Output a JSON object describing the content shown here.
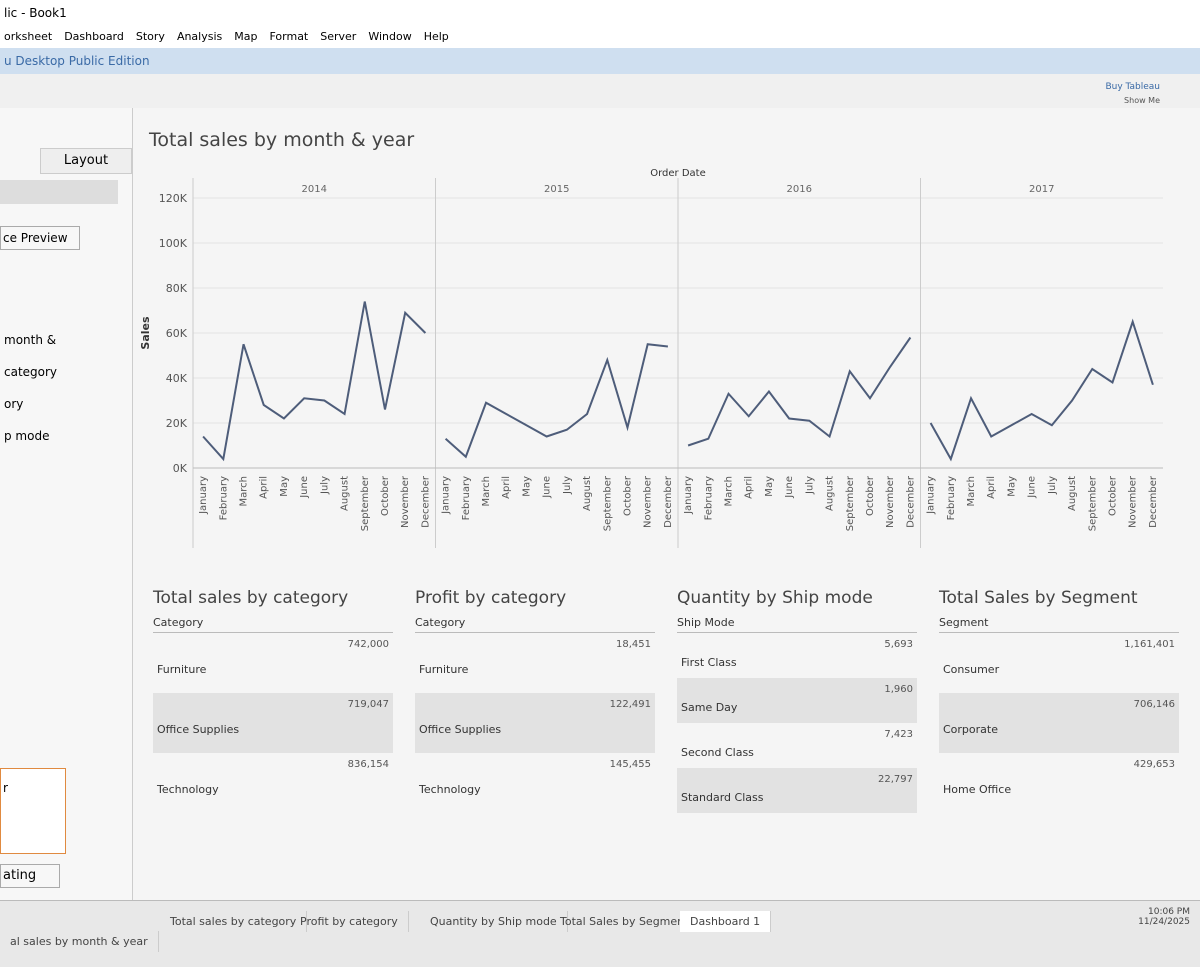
{
  "window": {
    "title": "lic - Book1",
    "menu": [
      "orksheet",
      "Dashboard",
      "Story",
      "Analysis",
      "Map",
      "Format",
      "Server",
      "Window",
      "Help"
    ],
    "edition": "u Desktop Public Edition",
    "buy": "Buy Tableau",
    "show_me": "Show Me"
  },
  "left_pane": {
    "tab": "Layout",
    "preview": "ce Preview",
    "sheets": [
      "month &",
      "category",
      "ory",
      "p mode"
    ],
    "list_item": "r",
    "floating": "ating"
  },
  "chart_data": {
    "type": "line",
    "title": "Total sales by month & year",
    "x_label": "Order Date",
    "y_label": "Sales",
    "categories": [
      "January",
      "February",
      "March",
      "April",
      "May",
      "June",
      "July",
      "August",
      "September",
      "October",
      "November",
      "December"
    ],
    "series": [
      {
        "name": "2014",
        "color": "#4e5d7a",
        "values": [
          14000,
          4000,
          55000,
          28000,
          22000,
          31000,
          30000,
          24000,
          74000,
          26000,
          69000,
          60000
        ]
      },
      {
        "name": "2015",
        "color": "#4e5d7a",
        "values": [
          13000,
          5000,
          29000,
          24000,
          19000,
          14000,
          17000,
          24000,
          48000,
          18000,
          55000,
          54000
        ]
      },
      {
        "name": "2016",
        "color": "#4e5d7a",
        "values": [
          10000,
          13000,
          33000,
          23000,
          34000,
          22000,
          21000,
          14000,
          43000,
          31000,
          45000,
          58000
        ]
      },
      {
        "name": "2017",
        "color": "#4e5d7a",
        "values": [
          20000,
          4000,
          31000,
          14000,
          19000,
          24000,
          19000,
          30000,
          44000,
          38000,
          65000,
          37000
        ]
      }
    ],
    "ylim": [
      0,
      120000
    ],
    "yticks": [
      {
        "value": 0,
        "label": "0K"
      },
      {
        "value": 20000,
        "label": "20K"
      },
      {
        "value": 40000,
        "label": "40K"
      },
      {
        "value": 60000,
        "label": "60K"
      },
      {
        "value": 80000,
        "label": "80K"
      },
      {
        "value": 100000,
        "label": "100K"
      },
      {
        "value": 120000,
        "label": "120K"
      }
    ],
    "grid": true
  },
  "tables": [
    {
      "title": "Total sales by category",
      "header": "Category",
      "rows": [
        [
          "Furniture",
          "742,000"
        ],
        [
          "Office Supplies",
          "719,047"
        ],
        [
          "Technology",
          "836,154"
        ]
      ]
    },
    {
      "title": "Profit by category",
      "header": "Category",
      "rows": [
        [
          "Furniture",
          "18,451"
        ],
        [
          "Office Supplies",
          "122,491"
        ],
        [
          "Technology",
          "145,455"
        ]
      ]
    },
    {
      "title": "Quantity by Ship mode",
      "header": "Ship Mode",
      "rows": [
        [
          "First Class",
          "5,693"
        ],
        [
          "Same Day",
          "1,960"
        ],
        [
          "Second Class",
          "7,423"
        ],
        [
          "Standard Class",
          "22,797"
        ]
      ]
    },
    {
      "title": "Total Sales by Segment",
      "header": "Segment",
      "rows": [
        [
          "Consumer",
          "1,161,401"
        ],
        [
          "Corporate",
          "706,146"
        ],
        [
          "Home Office",
          "429,653"
        ]
      ]
    }
  ],
  "dashboard_tabs": [
    "Total sales by category",
    "Profit by category",
    "Quantity by Ship mode",
    "Total Sales by Segment",
    "Dashboard 1"
  ],
  "sheet_tabs": [
    "al sales by month & year"
  ],
  "clock": {
    "time": "10:06 PM",
    "date": "11/24/2025"
  }
}
